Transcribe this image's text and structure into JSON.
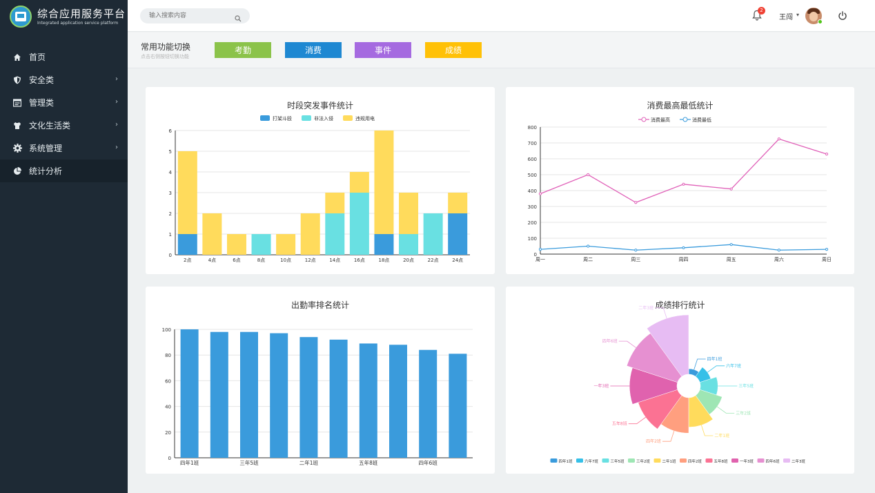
{
  "brand": {
    "title": "综合应用服务平台",
    "subtitle": "Integrated application service platform"
  },
  "sidebar": {
    "items": [
      {
        "label": "首页",
        "icon": "home-icon",
        "has_arrow": false
      },
      {
        "label": "安全类",
        "icon": "shield-icon",
        "has_arrow": true
      },
      {
        "label": "管理类",
        "icon": "list-icon",
        "has_arrow": true
      },
      {
        "label": "文化生活类",
        "icon": "shirt-icon",
        "has_arrow": true
      },
      {
        "label": "系统管理",
        "icon": "gear-icon",
        "has_arrow": true
      },
      {
        "label": "统计分析",
        "icon": "pie-chart-icon",
        "has_arrow": false,
        "active": true
      }
    ],
    "arrow": "›"
  },
  "header": {
    "search_placeholder": "输入搜索内容",
    "notification_count": "2",
    "user_name": "王闯",
    "caret": "▾"
  },
  "quickbar": {
    "title": "常用功能切换",
    "hint": "点击右侧按钮切换功能",
    "buttons": [
      {
        "label": "考勤",
        "color": "#8bc34a"
      },
      {
        "label": "消费",
        "color": "#1e88d2"
      },
      {
        "label": "事件",
        "color": "#a56ae0"
      },
      {
        "label": "成绩",
        "color": "#ffc107"
      }
    ]
  },
  "chart_data": [
    {
      "id": "events",
      "type": "bar",
      "stacked": true,
      "title": "时段突发事件统计",
      "categories": [
        "2点",
        "4点",
        "6点",
        "8点",
        "10点",
        "12点",
        "14点",
        "16点",
        "18点",
        "20点",
        "22点",
        "24点"
      ],
      "series": [
        {
          "name": "打架斗殴",
          "color": "#3a9bdc",
          "values": [
            1,
            0,
            0,
            0,
            0,
            0,
            0,
            0,
            1,
            0,
            0,
            2
          ]
        },
        {
          "name": "非法入侵",
          "color": "#69e0e2",
          "values": [
            0,
            0,
            0,
            1,
            0,
            0,
            2,
            3,
            0,
            1,
            2,
            0
          ]
        },
        {
          "name": "违规用电",
          "color": "#ffdb5c",
          "values": [
            4,
            2,
            1,
            0,
            1,
            2,
            1,
            1,
            5,
            2,
            0,
            1
          ]
        }
      ],
      "ylim": [
        0,
        6
      ],
      "yticks": [
        0,
        1,
        2,
        3,
        4,
        5,
        6
      ],
      "legend": "top",
      "grid": true
    },
    {
      "id": "spending",
      "type": "line",
      "title": "消费最高最低统计",
      "categories": [
        "周一",
        "周二",
        "周三",
        "周四",
        "周五",
        "周六",
        "周日"
      ],
      "series": [
        {
          "name": "消费最高",
          "color": "#e060b8",
          "values": [
            380,
            500,
            325,
            440,
            410,
            725,
            630
          ]
        },
        {
          "name": "消费最低",
          "color": "#3a9bdc",
          "values": [
            30,
            50,
            25,
            40,
            60,
            25,
            30
          ]
        }
      ],
      "ylim": [
        0,
        800
      ],
      "yticks": [
        0,
        100,
        200,
        300,
        400,
        500,
        600,
        700,
        800
      ],
      "legend": "top",
      "grid": true
    },
    {
      "id": "attendance",
      "type": "bar",
      "title": "出勤率排名统计",
      "categories": [
        "四年1班",
        "",
        "三年5班",
        "",
        "二年1班",
        "",
        "五年8班",
        "",
        "四年6班",
        ""
      ],
      "values": [
        100,
        98,
        98,
        97,
        94,
        92,
        89,
        88,
        84,
        81
      ],
      "color": "#3a9bdc",
      "ylim": [
        0,
        100
      ],
      "yticks": [
        0,
        20,
        40,
        60,
        80,
        100
      ],
      "grid": true
    },
    {
      "id": "scores",
      "type": "pie",
      "rose": true,
      "title": "成绩排行统计",
      "slices": [
        {
          "name": "四年1班",
          "value": 10,
          "color": "#3a9bdc"
        },
        {
          "name": "六年7班",
          "value": 13,
          "color": "#36c0e8"
        },
        {
          "name": "三年5班",
          "value": 16,
          "color": "#69e0e2"
        },
        {
          "name": "三年2班",
          "value": 19,
          "color": "#9ee6b4"
        },
        {
          "name": "二年1班",
          "value": 22,
          "color": "#ffdb5c"
        },
        {
          "name": "四年2班",
          "value": 25,
          "color": "#ff9f7f"
        },
        {
          "name": "五年8班",
          "value": 28,
          "color": "#fb7293"
        },
        {
          "name": "一年3班",
          "value": 31,
          "color": "#e062ae"
        },
        {
          "name": "四年6班",
          "value": 34,
          "color": "#e690d1"
        },
        {
          "name": "二年3班",
          "value": 37,
          "color": "#e7bcf3"
        }
      ],
      "legend": "bottom"
    }
  ]
}
